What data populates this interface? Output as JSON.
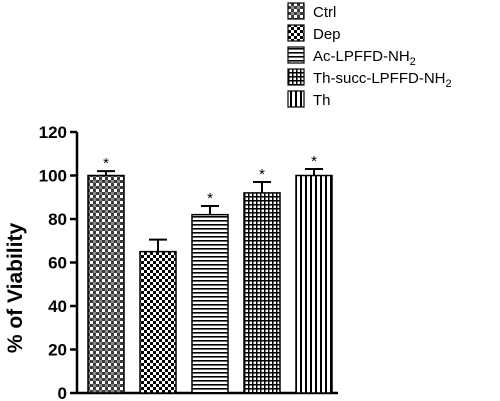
{
  "chart_data": {
    "type": "bar",
    "ylabel": "% of Viability",
    "ylim": [
      0,
      120
    ],
    "yticks": [
      "0",
      "20",
      "40",
      "60",
      "80",
      "100",
      "120"
    ],
    "grid": false,
    "legend_position": "top-right",
    "series": [
      {
        "name": "Ctrl",
        "value": 100,
        "error": 2,
        "significance": "*",
        "pattern": "checker-gray"
      },
      {
        "name": "Dep",
        "value": 65,
        "error": 5.5,
        "significance": "",
        "pattern": "checker-bw"
      },
      {
        "name": "Ac-LPFFD-NH",
        "name_sub": "2",
        "value": 82,
        "error": 4,
        "significance": "*",
        "pattern": "hlines"
      },
      {
        "name": "Th-succ-LPFFD-NH",
        "name_sub": "2",
        "value": 92,
        "error": 5,
        "significance": "*",
        "pattern": "grid"
      },
      {
        "name": "Th",
        "value": 100,
        "error": 3,
        "significance": "*",
        "pattern": "vlines"
      }
    ]
  }
}
